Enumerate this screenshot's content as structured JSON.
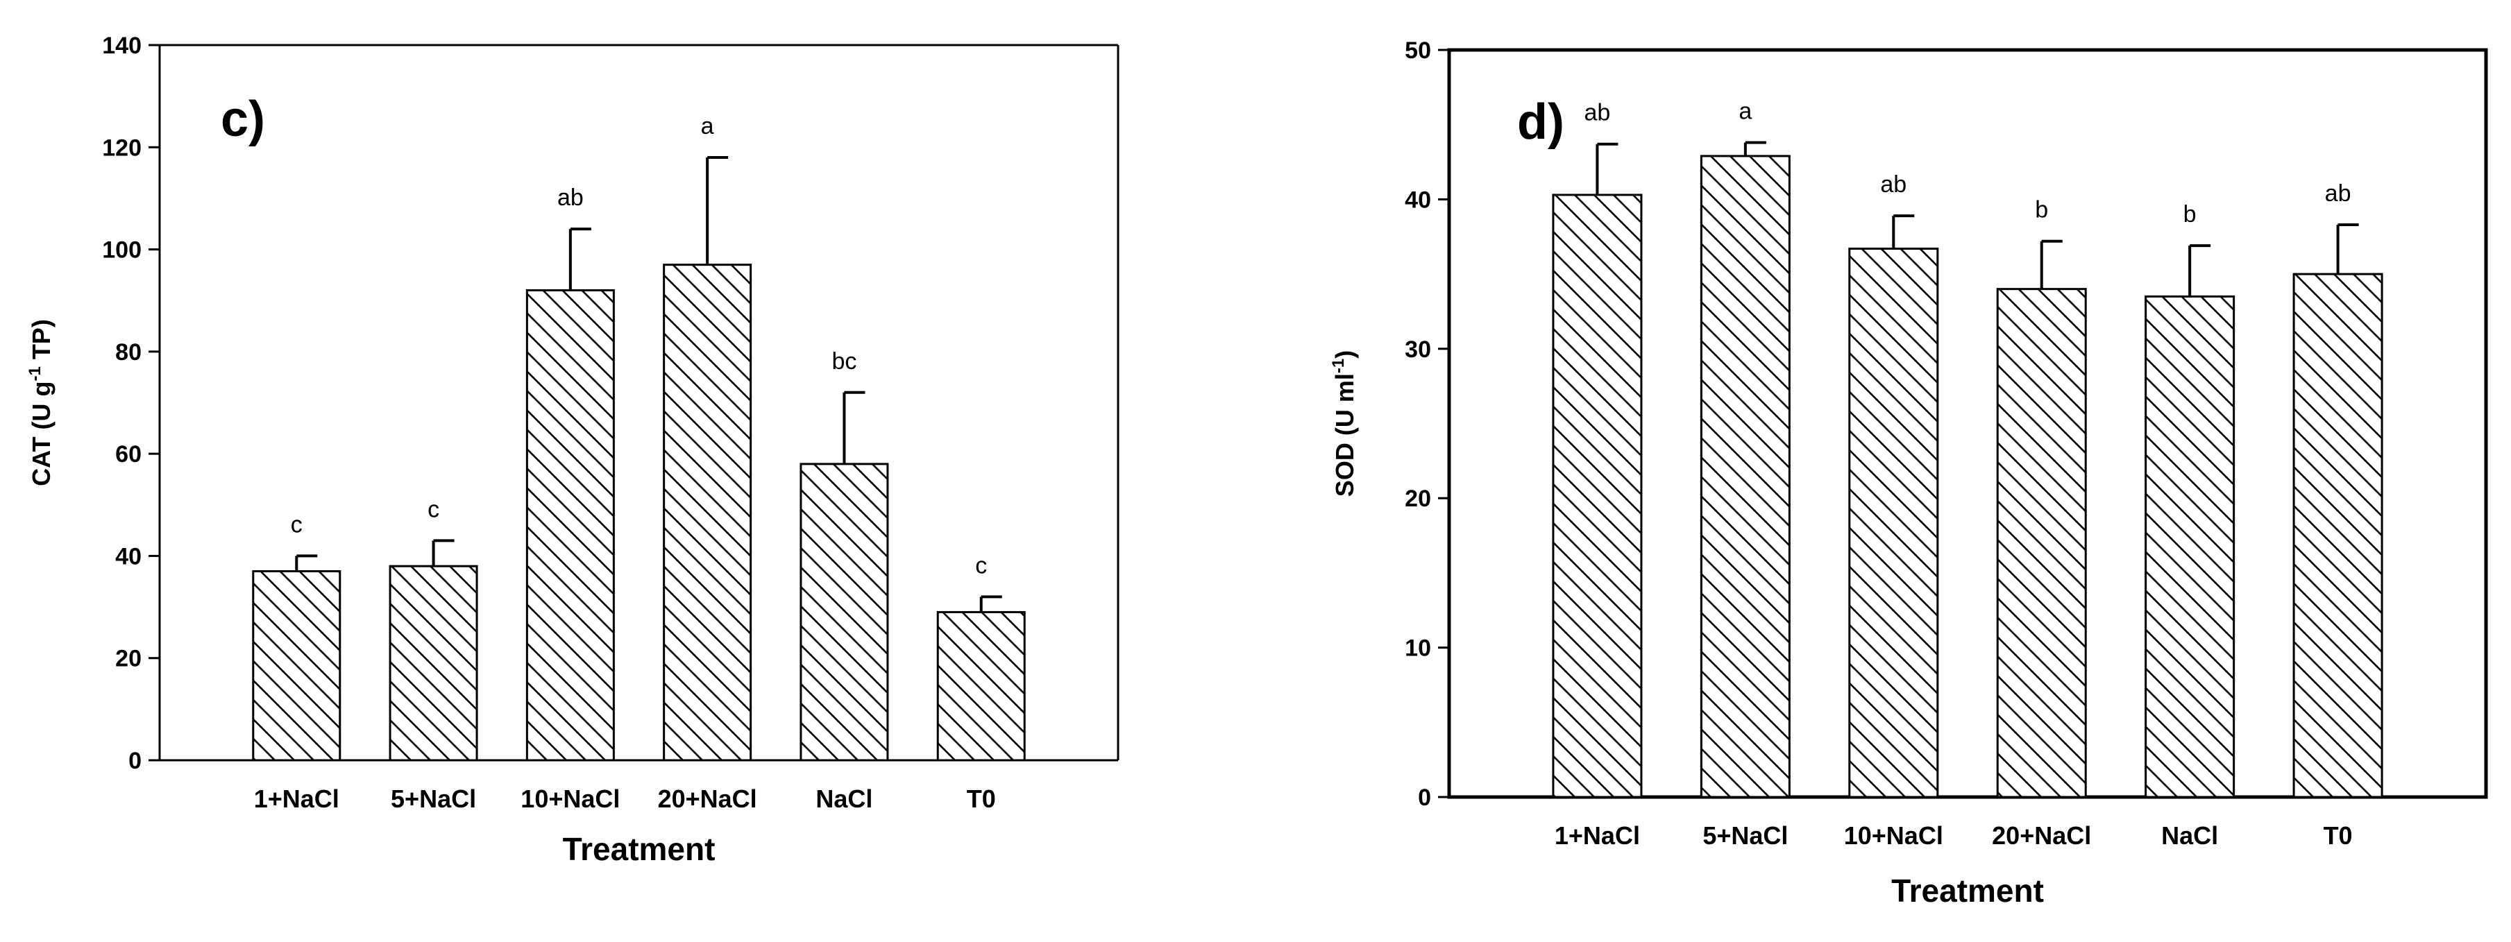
{
  "chart_data": [
    {
      "type": "bar",
      "panel_label": "c)",
      "categories": [
        "1+NaCl",
        "5+NaCl",
        "10+NaCl",
        "20+NaCl",
        "NaCl",
        "T0"
      ],
      "values": [
        37,
        38,
        92,
        97,
        58,
        29
      ],
      "errors": [
        3,
        5,
        12,
        21,
        14,
        3
      ],
      "significance": [
        "c",
        "c",
        "ab",
        "a",
        "bc",
        "c"
      ],
      "xlabel": "Treatment",
      "ylabel": {
        "main": "CAT (U g",
        "sup": "-1",
        "tail": " TP)"
      },
      "ylim": [
        0,
        140
      ],
      "yticks": [
        0,
        20,
        40,
        60,
        80,
        100,
        120,
        140
      ],
      "bar_pattern": "diagonal-hatch",
      "bar_color": "#ffffff",
      "line_color": "#000000",
      "grid": false
    },
    {
      "type": "bar",
      "panel_label": "d)",
      "categories": [
        "1+NaCl",
        "5+NaCl",
        "10+NaCl",
        "20+NaCl",
        "NaCl",
        "T0"
      ],
      "values": [
        40.3,
        42.9,
        36.7,
        34,
        33.5,
        35
      ],
      "errors": [
        3.4,
        0.9,
        2.2,
        3.2,
        3.4,
        3.3
      ],
      "significance": [
        "ab",
        "a",
        "ab",
        "b",
        "b",
        "ab"
      ],
      "xlabel": "Treatment",
      "ylabel": {
        "main": "SOD (U ml",
        "sup": "-1",
        "tail": ")"
      },
      "ylim": [
        0,
        50
      ],
      "yticks": [
        0,
        10,
        20,
        30,
        40,
        50
      ],
      "bar_pattern": "diagonal-hatch",
      "bar_color": "#ffffff",
      "line_color": "#000000",
      "grid": false
    }
  ]
}
